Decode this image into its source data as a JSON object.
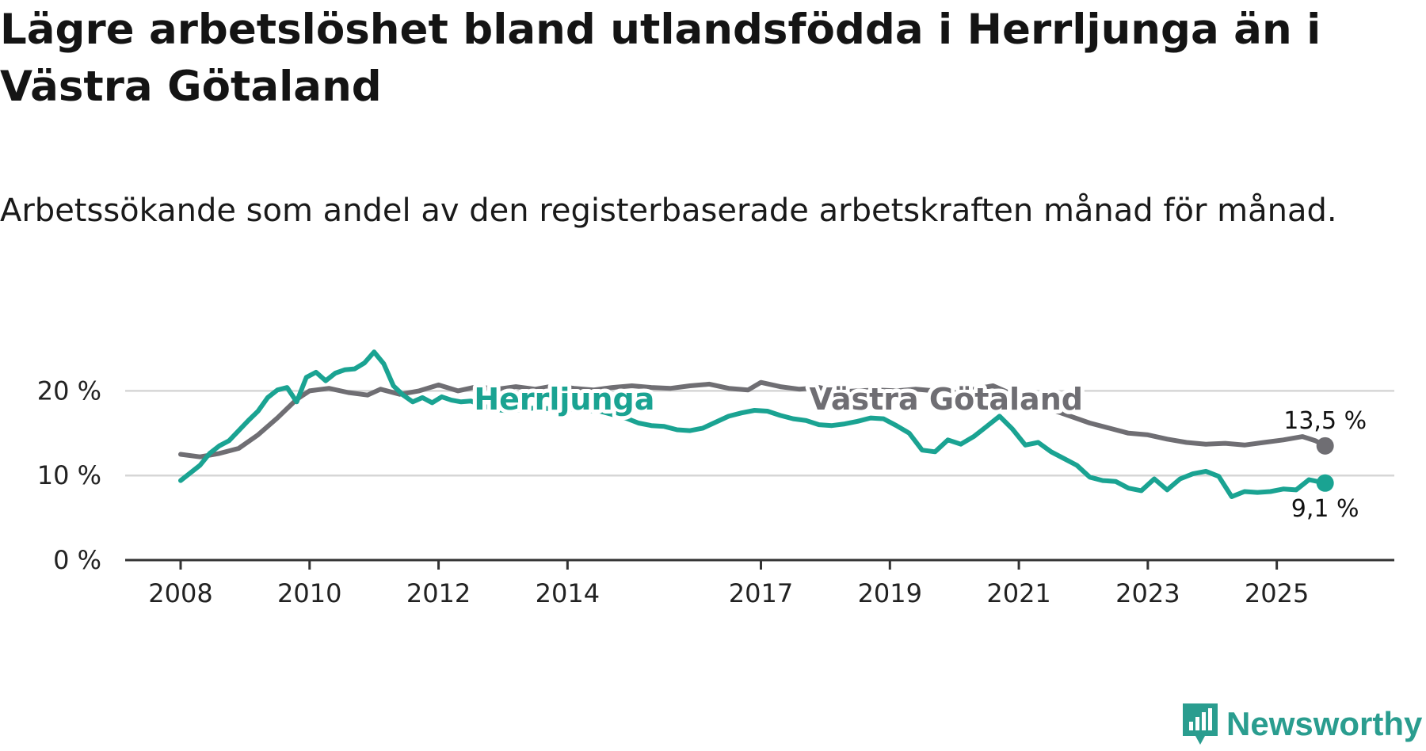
{
  "title": "Lägre arbetslöshet bland utlandsfödda i Herrljunga än i Västra Götaland",
  "subtitle": "Arbetssökande som andel av den registerbaserade arbetskraften månad för månad.",
  "brand": "Newsworthy",
  "colors": {
    "herrljunga": "#1aa392",
    "vastra": "#6f6e73",
    "grid": "#d6d6d6",
    "axis": "#333333"
  },
  "chart_data": {
    "type": "line",
    "ylim": [
      0,
      25
    ],
    "yticks": [
      {
        "value": 0,
        "label": "0 %"
      },
      {
        "value": 10,
        "label": "10 %"
      },
      {
        "value": 20,
        "label": "20 %"
      }
    ],
    "xlim": [
      2008,
      2026.7
    ],
    "xticks": [
      {
        "value": 2008,
        "label": "2008"
      },
      {
        "value": 2010,
        "label": "2010"
      },
      {
        "value": 2012,
        "label": "2012"
      },
      {
        "value": 2014,
        "label": "2014"
      },
      {
        "value": 2017,
        "label": "2017"
      },
      {
        "value": 2019,
        "label": "2019"
      },
      {
        "value": 2021,
        "label": "2021"
      },
      {
        "value": 2023,
        "label": "2023"
      },
      {
        "value": 2025,
        "label": "2025"
      }
    ],
    "grid": true,
    "series": [
      {
        "name": "Västra Götaland",
        "color_key": "vastra",
        "end_label": "13,5 %",
        "x": [
          2008.0,
          2008.3,
          2008.6,
          2008.9,
          2009.2,
          2009.5,
          2009.8,
          2010.0,
          2010.3,
          2010.6,
          2010.9,
          2011.1,
          2011.4,
          2011.7,
          2012.0,
          2012.3,
          2012.6,
          2012.9,
          2013.2,
          2013.5,
          2013.8,
          2014.1,
          2014.4,
          2014.7,
          2015.0,
          2015.3,
          2015.6,
          2015.9,
          2016.2,
          2016.5,
          2016.8,
          2017.0,
          2017.3,
          2017.6,
          2017.9,
          2018.2,
          2018.5,
          2018.8,
          2019.1,
          2019.4,
          2019.7,
          2020.0,
          2020.3,
          2020.6,
          2020.9,
          2021.2,
          2021.5,
          2021.8,
          2022.1,
          2022.4,
          2022.7,
          2023.0,
          2023.3,
          2023.6,
          2023.9,
          2024.2,
          2024.5,
          2024.8,
          2025.1,
          2025.4,
          2025.6,
          2025.75
        ],
        "y": [
          12.5,
          12.2,
          12.6,
          13.2,
          14.8,
          16.8,
          19.0,
          20.0,
          20.3,
          19.8,
          19.5,
          20.2,
          19.6,
          20.0,
          20.7,
          20.0,
          20.5,
          20.2,
          20.5,
          20.2,
          20.6,
          20.3,
          20.1,
          20.4,
          20.6,
          20.4,
          20.3,
          20.6,
          20.8,
          20.3,
          20.1,
          21.0,
          20.5,
          20.2,
          20.4,
          19.9,
          20.0,
          20.1,
          20.0,
          20.2,
          20.0,
          19.8,
          20.2,
          20.6,
          19.6,
          18.6,
          17.8,
          17.0,
          16.2,
          15.6,
          15.0,
          14.8,
          14.3,
          13.9,
          13.7,
          13.8,
          13.6,
          13.9,
          14.2,
          14.6,
          14.1,
          13.5
        ]
      },
      {
        "name": "Herrljunga",
        "color_key": "herrljunga",
        "end_label": "9,1 %",
        "x": [
          2008.0,
          2008.15,
          2008.3,
          2008.45,
          2008.6,
          2008.75,
          2008.9,
          2009.05,
          2009.2,
          2009.35,
          2009.5,
          2009.65,
          2009.8,
          2009.95,
          2010.1,
          2010.25,
          2010.4,
          2010.55,
          2010.7,
          2010.85,
          2011.0,
          2011.15,
          2011.3,
          2011.45,
          2011.6,
          2011.75,
          2011.9,
          2012.05,
          2012.2,
          2012.35,
          2012.5,
          2012.7,
          2012.9,
          2013.1,
          2013.3,
          2013.5,
          2013.7,
          2013.9,
          2014.1,
          2014.3,
          2014.5,
          2014.7,
          2014.9,
          2015.1,
          2015.3,
          2015.5,
          2015.7,
          2015.9,
          2016.1,
          2016.3,
          2016.5,
          2016.7,
          2016.9,
          2017.1,
          2017.3,
          2017.5,
          2017.7,
          2017.9,
          2018.1,
          2018.3,
          2018.5,
          2018.7,
          2018.9,
          2019.1,
          2019.3,
          2019.5,
          2019.7,
          2019.9,
          2020.1,
          2020.3,
          2020.5,
          2020.7,
          2020.9,
          2021.1,
          2021.3,
          2021.5,
          2021.7,
          2021.9,
          2022.1,
          2022.3,
          2022.5,
          2022.7,
          2022.9,
          2023.1,
          2023.3,
          2023.5,
          2023.7,
          2023.9,
          2024.1,
          2024.3,
          2024.5,
          2024.7,
          2024.9,
          2025.1,
          2025.3,
          2025.5,
          2025.75
        ],
        "y": [
          9.4,
          10.3,
          11.2,
          12.6,
          13.5,
          14.1,
          15.3,
          16.5,
          17.6,
          19.2,
          20.1,
          20.4,
          18.7,
          21.6,
          22.2,
          21.2,
          22.1,
          22.5,
          22.6,
          23.3,
          24.6,
          23.2,
          20.6,
          19.5,
          18.7,
          19.2,
          18.6,
          19.3,
          18.9,
          18.7,
          18.8,
          18.2,
          17.8,
          17.6,
          17.8,
          18.0,
          17.9,
          17.6,
          17.9,
          17.7,
          17.6,
          17.2,
          16.8,
          16.2,
          15.9,
          15.8,
          15.4,
          15.3,
          15.6,
          16.3,
          17.0,
          17.4,
          17.7,
          17.6,
          17.1,
          16.7,
          16.5,
          16.0,
          15.9,
          16.1,
          16.4,
          16.8,
          16.7,
          15.9,
          15.0,
          13.0,
          12.8,
          14.2,
          13.7,
          14.6,
          15.8,
          17.0,
          15.5,
          13.6,
          13.9,
          12.8,
          12.0,
          11.2,
          9.8,
          9.4,
          9.3,
          8.5,
          8.2,
          9.6,
          8.3,
          9.6,
          10.2,
          10.5,
          9.9,
          7.5,
          8.1,
          8.0,
          8.1,
          8.4,
          8.3,
          9.5,
          9.1
        ]
      }
    ]
  }
}
